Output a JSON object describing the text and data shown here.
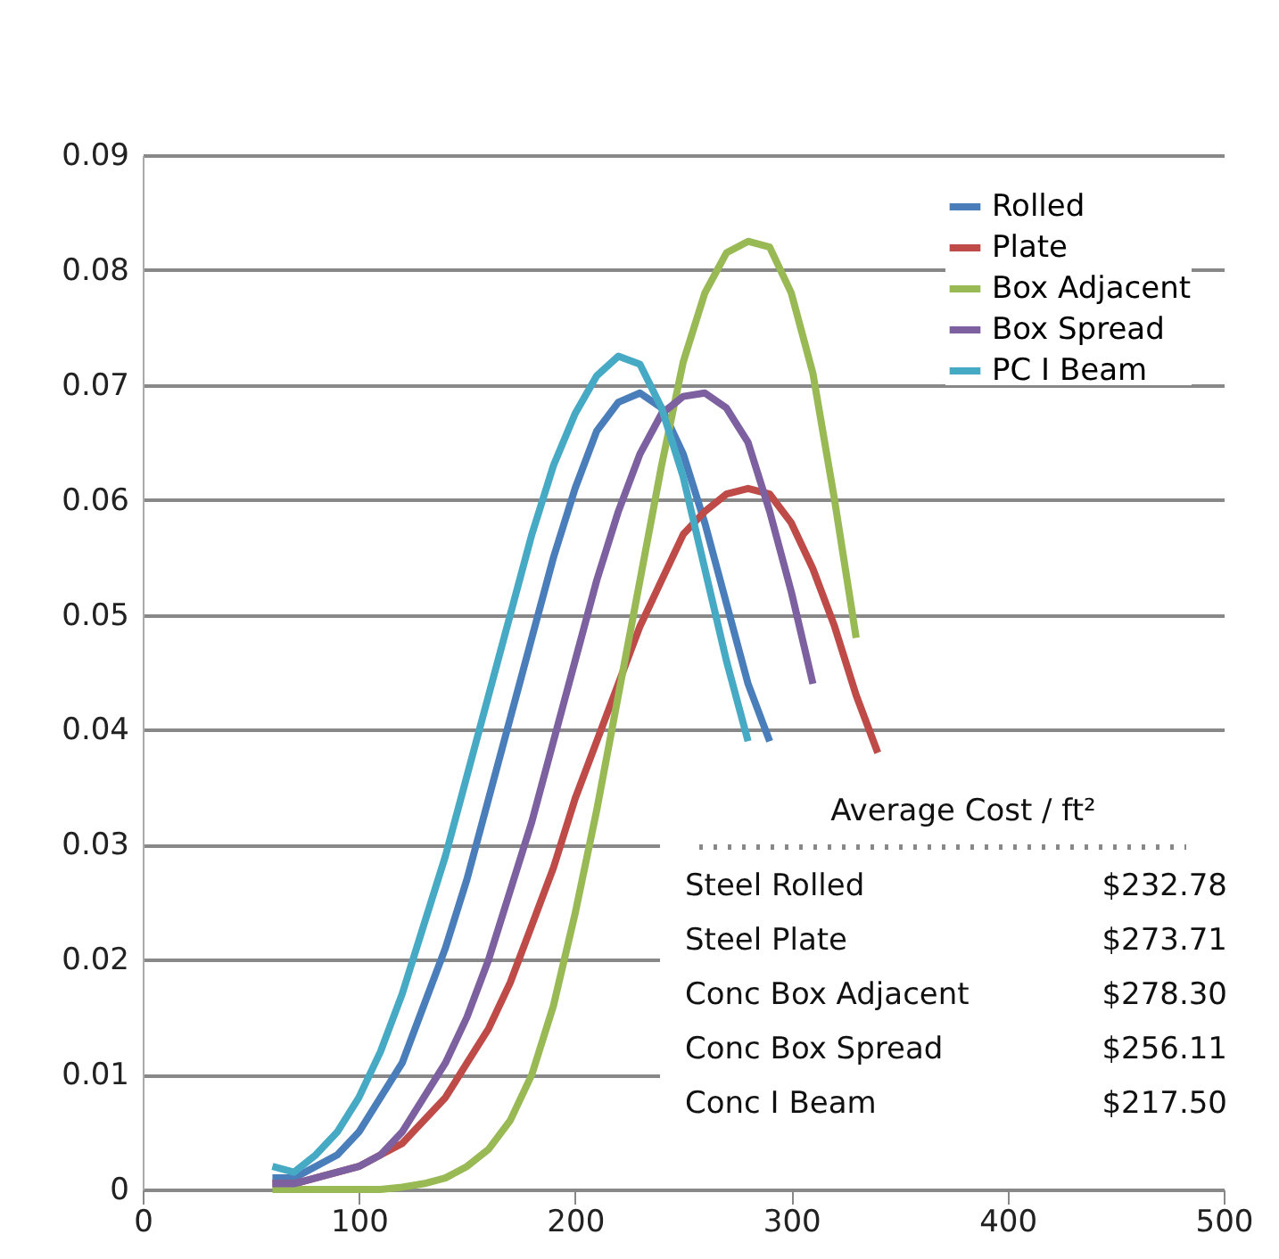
{
  "chart_data": {
    "type": "line",
    "x": [
      60,
      70,
      80,
      90,
      100,
      110,
      120,
      130,
      140,
      150,
      160,
      170,
      180,
      190,
      200,
      210,
      220,
      230,
      240,
      250,
      260,
      270,
      280,
      290,
      300,
      310,
      320,
      330,
      340
    ],
    "series": [
      {
        "name": "Rolled",
        "color": "#4a7ebb",
        "values": [
          0.001,
          0.001,
          0.002,
          0.003,
          0.005,
          0.008,
          0.011,
          0.016,
          0.021,
          0.027,
          0.034,
          0.041,
          0.048,
          0.055,
          0.061,
          0.066,
          0.0685,
          0.0693,
          0.068,
          0.064,
          0.058,
          0.051,
          0.044,
          0.039,
          null,
          null,
          null,
          null,
          null
        ]
      },
      {
        "name": "Plate",
        "color": "#be4b48",
        "values": [
          0.0005,
          0.0005,
          0.001,
          0.0015,
          0.002,
          0.003,
          0.004,
          0.006,
          0.008,
          0.011,
          0.014,
          0.018,
          0.023,
          0.028,
          0.034,
          0.039,
          0.044,
          0.049,
          0.053,
          0.057,
          0.059,
          0.0605,
          0.061,
          0.0605,
          0.058,
          0.054,
          0.049,
          0.043,
          0.038
        ]
      },
      {
        "name": "Box Adjacent",
        "color": "#98b954",
        "values": [
          0,
          0,
          0,
          0,
          0,
          0,
          0.0002,
          0.0005,
          0.001,
          0.002,
          0.0035,
          0.006,
          0.01,
          0.016,
          0.024,
          0.033,
          0.043,
          0.053,
          0.063,
          0.072,
          0.078,
          0.0815,
          0.0825,
          0.082,
          0.078,
          0.071,
          0.06,
          0.048,
          null
        ]
      },
      {
        "name": "Box Spread",
        "color": "#7d60a0",
        "values": [
          0.0005,
          0.0005,
          0.001,
          0.0015,
          0.002,
          0.003,
          0.005,
          0.008,
          0.011,
          0.015,
          0.02,
          0.026,
          0.032,
          0.039,
          0.046,
          0.053,
          0.059,
          0.064,
          0.0675,
          0.069,
          0.0693,
          0.068,
          0.065,
          0.059,
          0.052,
          0.044,
          null,
          null,
          null
        ]
      },
      {
        "name": "PC I Beam",
        "color": "#46aac5",
        "values": [
          0.002,
          0.0015,
          0.003,
          0.005,
          0.008,
          0.012,
          0.017,
          0.023,
          0.029,
          0.036,
          0.043,
          0.05,
          0.057,
          0.063,
          0.0675,
          0.0708,
          0.0725,
          0.0718,
          0.068,
          0.062,
          0.054,
          0.046,
          0.039,
          null,
          null,
          null,
          null,
          null,
          null
        ]
      }
    ],
    "xlim": [
      0,
      500
    ],
    "xticks": [
      0,
      100,
      200,
      300,
      400,
      500
    ],
    "ylim": [
      0,
      0.09
    ],
    "yticks": [
      0,
      0.01,
      0.02,
      0.03,
      0.04,
      0.05,
      0.06,
      0.07,
      0.08,
      0.09
    ],
    "grid": "y",
    "legend": "top right",
    "marker": "none",
    "line_style": "solid",
    "annotations": [
      "Average Cost / ft²",
      "Steel Rolled",
      "$232.78",
      "Steel Plate",
      "$273.71",
      "Conc Box Adjacent",
      "$278.30",
      "Conc Box Spread",
      "$256.11",
      "Conc I Beam",
      "$217.50"
    ]
  }
}
